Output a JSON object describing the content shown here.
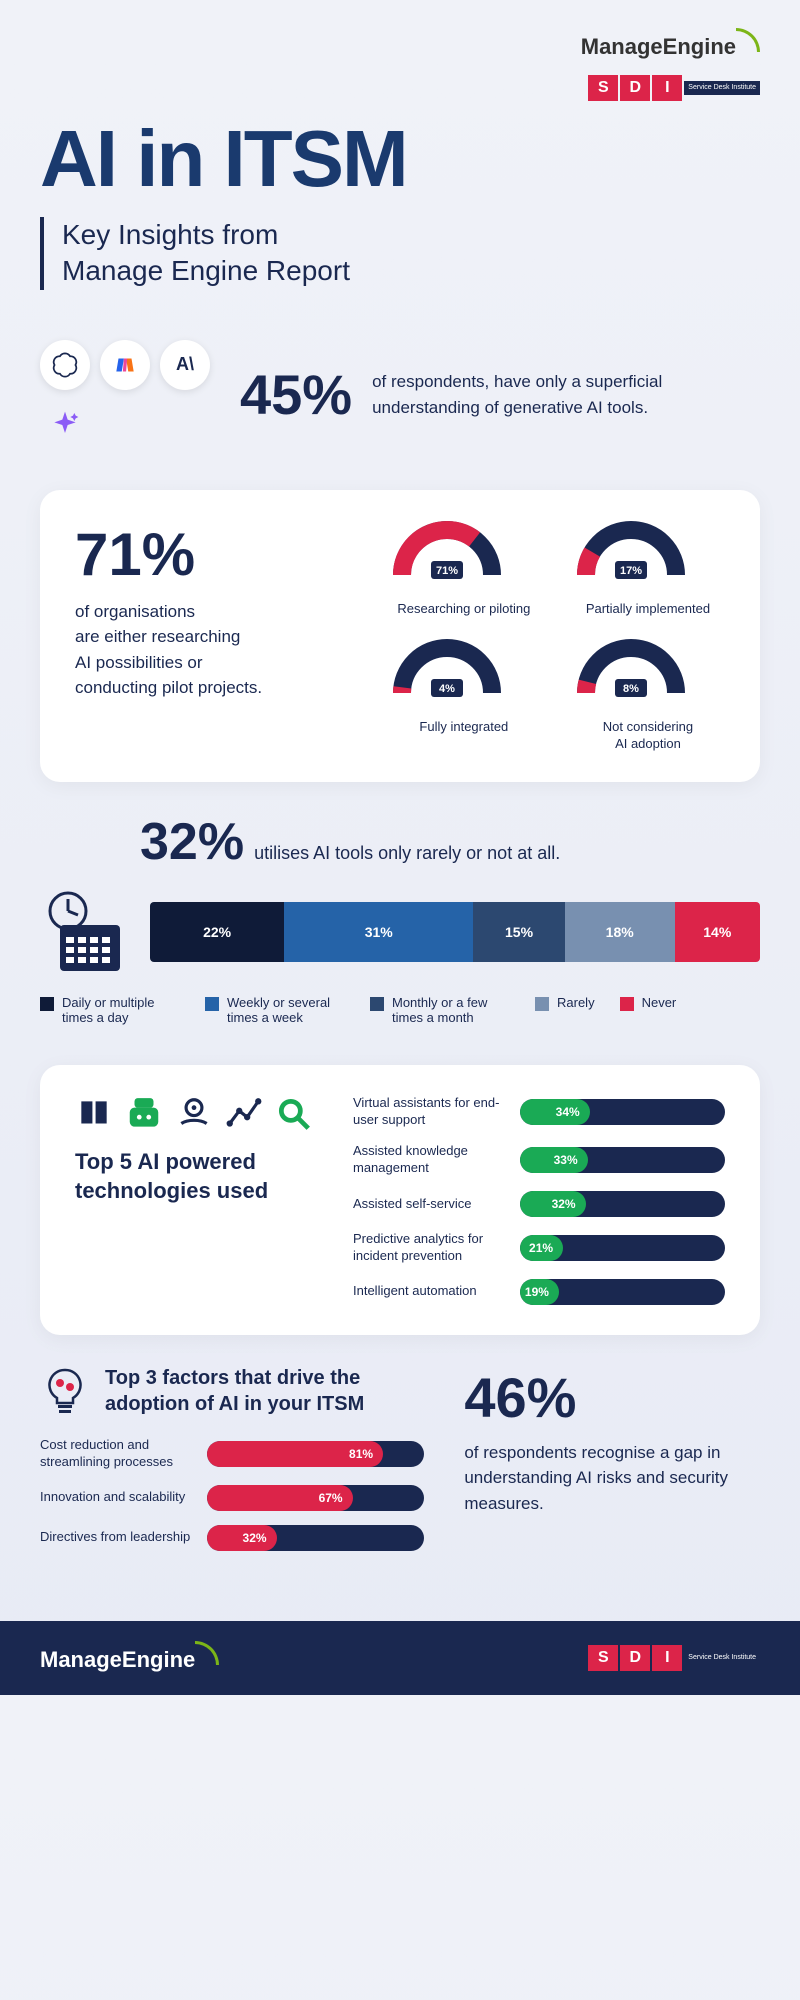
{
  "brand": {
    "manage_engine": "ManageEngine",
    "sdi": [
      "S",
      "D",
      "I"
    ],
    "sdi_tag": "Service Desk Institute"
  },
  "title": "AI in ITSM",
  "subtitle": "Key Insights from\nManage Engine Report",
  "colors": {
    "navy": "#1a2850",
    "dark_navy": "#0f1b38",
    "title_blue": "#1a3a6e",
    "red": "#dc2449",
    "green": "#1aaa55",
    "blue1": "#2563a8",
    "blue2": "#2c4870",
    "greyblue": "#7890b0",
    "bg": "#f0f2f8"
  },
  "s1": {
    "pct": "45%",
    "text": "of respondents, have only a superficial understanding of generative AI tools."
  },
  "s2": {
    "pct": "71%",
    "text": "of organisations\nare either researching\nAI possibilities or\nconducting pilot projects.",
    "gauges": [
      {
        "value": 71,
        "label": "Researching or piloting",
        "fill": "#dc2449",
        "empty": "#1a2850"
      },
      {
        "value": 17,
        "label": "Partially implemented",
        "fill": "#dc2449",
        "empty": "#1a2850"
      },
      {
        "value": 4,
        "label": "Fully integrated",
        "fill": "#dc2449",
        "empty": "#1a2850"
      },
      {
        "value": 8,
        "label": "Not considering\nAI adoption",
        "fill": "#dc2449",
        "empty": "#1a2850"
      }
    ]
  },
  "s3": {
    "pct": "32%",
    "text": "utilises AI tools only rarely or not at all.",
    "segments": [
      {
        "value": 22,
        "label": "Daily or multiple times a day",
        "color": "#0f1b38"
      },
      {
        "value": 31,
        "label": "Weekly or several times a week",
        "color": "#2563a8"
      },
      {
        "value": 15,
        "label": "Monthly or a few times a month",
        "color": "#2c4870"
      },
      {
        "value": 18,
        "label": "Rarely",
        "color": "#7890b0"
      },
      {
        "value": 14,
        "label": "Never",
        "color": "#dc2449"
      }
    ]
  },
  "s4": {
    "title": "Top 5 AI powered technologies used",
    "bars": [
      {
        "label": "Virtual assistants for end-user support",
        "value": 34,
        "color": "#1aaa55"
      },
      {
        "label": "Assisted knowledge management",
        "value": 33,
        "color": "#1aaa55"
      },
      {
        "label": "Assisted self-service",
        "value": 32,
        "color": "#1aaa55"
      },
      {
        "label": "Predictive analytics for incident prevention",
        "value": 21,
        "color": "#1aaa55"
      },
      {
        "label": "Intelligent automation",
        "value": 19,
        "color": "#1aaa55"
      }
    ]
  },
  "s5": {
    "title": "Top 3 factors that drive the adoption of AI in your ITSM",
    "bars": [
      {
        "label": "Cost reduction and streamlining processes",
        "value": 81,
        "color": "#dc2449"
      },
      {
        "label": "Innovation and scalability",
        "value": 67,
        "color": "#dc2449"
      },
      {
        "label": "Directives from leadership",
        "value": 32,
        "color": "#dc2449"
      }
    ],
    "right_pct": "46%",
    "right_text": "of respondents recognise a gap in understanding AI risks and security measures."
  }
}
